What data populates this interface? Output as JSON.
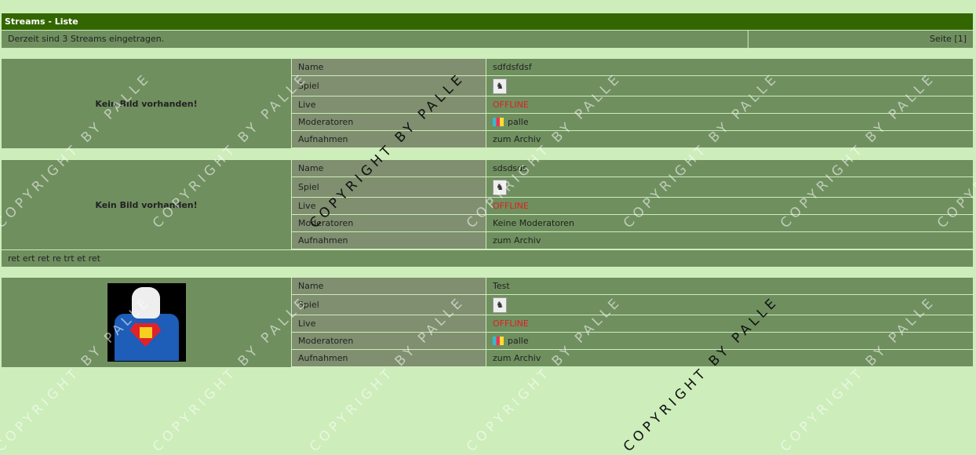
{
  "header": {
    "title": "Streams - Liste"
  },
  "info": {
    "count_text": "Derzeit sind 3 Streams eingetragen.",
    "page": "Seite [1]"
  },
  "labels": {
    "name": "Name",
    "game": "Spiel",
    "live": "Live",
    "mods": "Moderatoren",
    "rec": "Aufnahmen"
  },
  "streams": [
    {
      "picture": "Kein Bild vorhanden!",
      "name": "sdfdsfdsf",
      "game_icon": "counter-strike-icon",
      "live": "OFFLINE",
      "mods": "palle",
      "mod_icon": "user-rank-icon",
      "rec": "zum Archiv"
    },
    {
      "picture": "Kein Bild vorhanden!",
      "name": "sdsdsds",
      "game_icon": "counter-strike-icon",
      "live": "OFFLINE",
      "mods": "Keine Moderatoren",
      "rec": "zum Archiv",
      "description": "ret ert ret re trt et ret"
    },
    {
      "picture": "stormtrooper-superman-image",
      "name": "Test",
      "game_icon": "counter-strike-icon",
      "live": "OFFLINE",
      "mods": "palle",
      "mod_icon": "user-rank-icon",
      "rec": "zum Archiv"
    }
  ],
  "watermark": "COPYRIGHT BY PALLE",
  "colors": {
    "background": "#cdedbb",
    "header": "#336600",
    "row": "#6f8f5f",
    "label": "#7f8f6f",
    "offline": "#e02020"
  }
}
